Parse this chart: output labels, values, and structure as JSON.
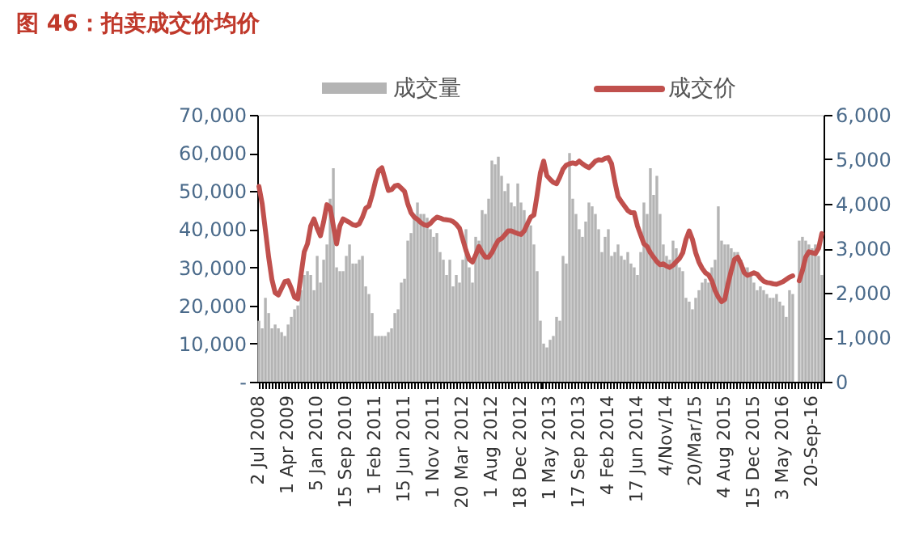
{
  "chart_data": {
    "type": "bar",
    "title": "图 46：拍卖成交价均价",
    "categories": [
      "2 Jul 2008",
      null,
      null,
      null,
      null,
      null,
      null,
      null,
      null,
      "1 Apr 2009",
      null,
      null,
      null,
      null,
      null,
      null,
      null,
      null,
      "5 Jan 2010",
      null,
      null,
      null,
      null,
      null,
      null,
      null,
      null,
      "15 Sep 2010",
      null,
      null,
      null,
      null,
      null,
      null,
      null,
      null,
      "1 Feb 2011",
      null,
      null,
      null,
      null,
      null,
      null,
      null,
      null,
      "15 Jun 2011",
      null,
      null,
      null,
      null,
      null,
      null,
      null,
      null,
      "1 Nov 2011",
      null,
      null,
      null,
      null,
      null,
      null,
      null,
      null,
      "20 Mar 2012",
      null,
      null,
      null,
      null,
      null,
      null,
      null,
      null,
      "1 Aug 2012",
      null,
      null,
      null,
      null,
      null,
      null,
      null,
      null,
      "18 Dec 2012",
      null,
      null,
      null,
      null,
      null,
      null,
      null,
      null,
      "1 May 2013",
      null,
      null,
      null,
      null,
      null,
      null,
      null,
      null,
      "17 Sep 2013",
      null,
      null,
      null,
      null,
      null,
      null,
      null,
      null,
      "4 Feb 2014",
      null,
      null,
      null,
      null,
      null,
      null,
      null,
      null,
      "17 Jun 2014",
      null,
      null,
      null,
      null,
      null,
      null,
      null,
      null,
      "4/Nov/14",
      null,
      null,
      null,
      null,
      null,
      null,
      null,
      null,
      "20/Mar/15",
      null,
      null,
      null,
      null,
      null,
      null,
      null,
      null,
      "4 Aug 2015",
      null,
      null,
      null,
      null,
      null,
      null,
      null,
      null,
      "15 Dec 2015",
      null,
      null,
      null,
      null,
      null,
      null,
      null,
      null,
      "3 May 2016",
      null,
      null,
      null,
      null,
      null,
      null,
      null,
      null,
      "20-Sep-16",
      null,
      null,
      null
    ],
    "series": [
      {
        "name": "成交量",
        "color": "#b4b4b4",
        "values": [
          16000,
          14000,
          22000,
          18000,
          14000,
          15000,
          14000,
          13000,
          12000,
          15000,
          17000,
          19000,
          20000,
          24000,
          28000,
          29000,
          28000,
          24000,
          33000,
          26000,
          32000,
          36000,
          48000,
          56000,
          30000,
          29000,
          29000,
          33000,
          36000,
          31000,
          31000,
          32000,
          33000,
          25000,
          23000,
          18000,
          12000,
          12000,
          12000,
          12000,
          13000,
          14000,
          18000,
          19000,
          26000,
          27000,
          37000,
          39000,
          44000,
          47000,
          44000,
          44000,
          43000,
          40000,
          38000,
          39000,
          34000,
          32000,
          28000,
          32000,
          25000,
          28000,
          26000,
          32000,
          40000,
          30000,
          26000,
          38000,
          37000,
          45000,
          44000,
          48000,
          58000,
          57000,
          59000,
          54000,
          50000,
          52000,
          47000,
          46000,
          52000,
          47000,
          45000,
          42000,
          41000,
          36000,
          29000,
          16000,
          10000,
          9000,
          11000,
          12000,
          17000,
          16000,
          33000,
          31000,
          60000,
          48000,
          44000,
          40000,
          38000,
          42000,
          47000,
          46000,
          44000,
          40000,
          34000,
          38000,
          40000,
          33000,
          34000,
          36000,
          33000,
          32000,
          34000,
          31000,
          30000,
          28000,
          34000,
          47000,
          44000,
          56000,
          49000,
          54000,
          44000,
          36000,
          33000,
          32000,
          37000,
          35000,
          30000,
          29000,
          22000,
          21000,
          19000,
          22000,
          24000,
          26000,
          27000,
          26000,
          30000,
          32000,
          46000,
          37000,
          36000,
          36000,
          35000,
          34000,
          34000,
          32000,
          30000,
          30000,
          28000,
          26000,
          24000,
          25000,
          24000,
          23000,
          22000,
          22000,
          23000,
          21000,
          20000,
          17000,
          24000,
          23000,
          null,
          37000,
          38000,
          37000,
          36000,
          35000,
          36000,
          33000,
          28000
        ]
      },
      {
        "name": "成交价",
        "type": "line",
        "axis": "y2",
        "color": "#c0504d",
        "values": [
          4390,
          4000,
          3400,
          2800,
          2300,
          2000,
          1950,
          2100,
          2250,
          2270,
          2100,
          1900,
          1860,
          2400,
          2920,
          3100,
          3500,
          3660,
          3450,
          3280,
          3600,
          3980,
          3920,
          3500,
          3100,
          3500,
          3660,
          3620,
          3580,
          3530,
          3510,
          3550,
          3700,
          3900,
          3950,
          4200,
          4500,
          4750,
          4810,
          4550,
          4300,
          4320,
          4400,
          4420,
          4350,
          4280,
          4000,
          3800,
          3700,
          3650,
          3580,
          3530,
          3510,
          3560,
          3640,
          3700,
          3680,
          3650,
          3640,
          3630,
          3600,
          3540,
          3450,
          3200,
          2950,
          2750,
          2690,
          2850,
          3040,
          2900,
          2800,
          2800,
          2900,
          3050,
          3180,
          3220,
          3300,
          3390,
          3390,
          3360,
          3330,
          3310,
          3390,
          3550,
          3700,
          3750,
          4200,
          4700,
          4960,
          4630,
          4550,
          4480,
          4450,
          4600,
          4780,
          4870,
          4900,
          4920,
          4900,
          4960,
          4900,
          4850,
          4810,
          4880,
          4960,
          4990,
          4980,
          5020,
          5040,
          4900,
          4500,
          4160,
          4050,
          3950,
          3850,
          3800,
          3800,
          3500,
          3300,
          3100,
          3040,
          2900,
          2800,
          2700,
          2630,
          2650,
          2600,
          2570,
          2620,
          2700,
          2770,
          2900,
          3200,
          3390,
          3200,
          2900,
          2690,
          2550,
          2450,
          2400,
          2270,
          2050,
          1900,
          1800,
          1850,
          2200,
          2500,
          2750,
          2800,
          2650,
          2450,
          2390,
          2420,
          2450,
          2420,
          2330,
          2260,
          2230,
          2220,
          2200,
          2190,
          2220,
          2250,
          2300,
          2350,
          2380,
          null,
          2270,
          2500,
          2800,
          2920,
          2900,
          2880,
          3000,
          3330
        ]
      }
    ],
    "ylim": [
      0,
      70000
    ],
    "yticks": [
      {
        "value": 0,
        "label": "-"
      },
      {
        "value": 10000,
        "label": "10,000"
      },
      {
        "value": 20000,
        "label": "20,000"
      },
      {
        "value": 30000,
        "label": "30,000"
      },
      {
        "value": 40000,
        "label": "40,000"
      },
      {
        "value": 50000,
        "label": "50,000"
      },
      {
        "value": 60000,
        "label": "60,000"
      },
      {
        "value": 70000,
        "label": "70,000"
      }
    ],
    "y2lim": [
      0,
      6000
    ],
    "y2ticks": [
      0,
      {
        "value": 1000,
        "label": "1,000"
      },
      {
        "value": 2000,
        "label": "2,000"
      },
      {
        "value": 3000,
        "label": "3,000"
      },
      {
        "value": 4000,
        "label": "4,000"
      },
      {
        "value": 5000,
        "label": "5,000"
      },
      {
        "value": 6000,
        "label": "6,000"
      }
    ],
    "grid": false,
    "legend": "top"
  }
}
